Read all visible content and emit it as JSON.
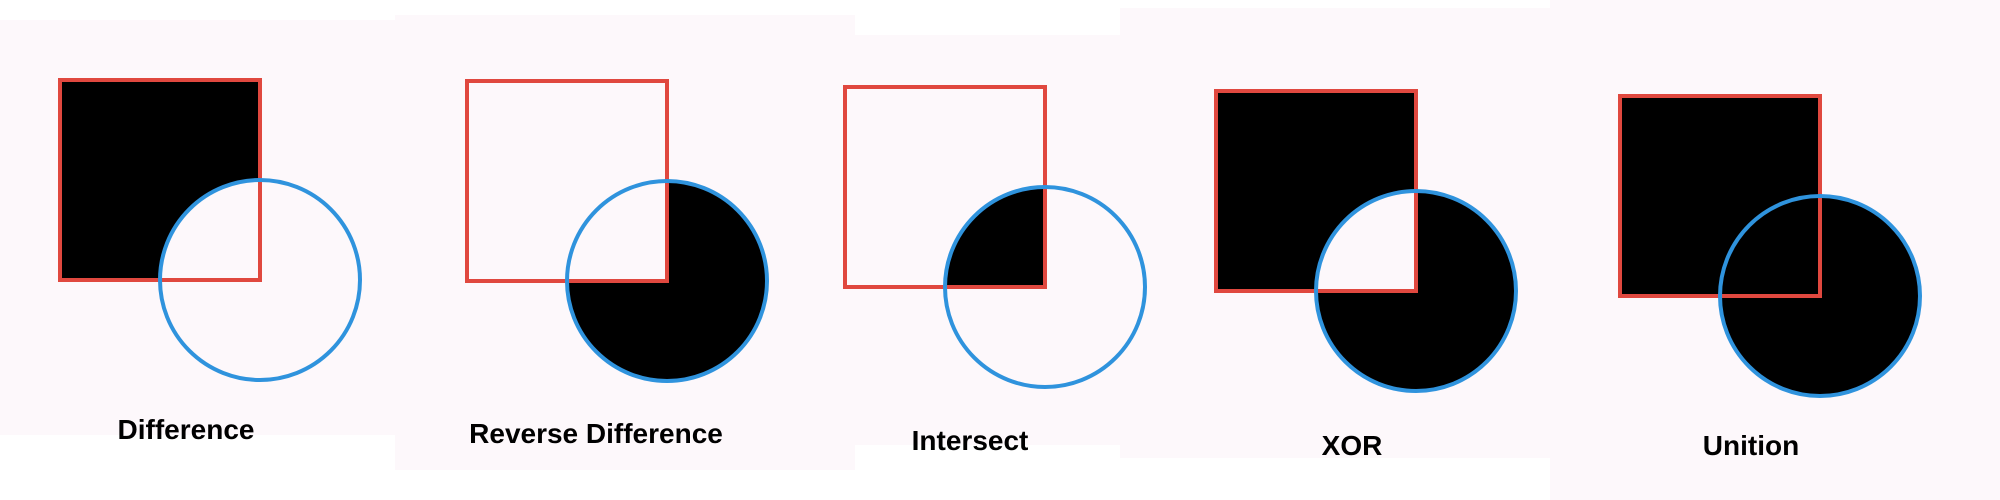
{
  "colors": {
    "square_stroke": "#e0483f",
    "circle_stroke": "#2f93dd",
    "fill": "#000000",
    "background": "#fdf8fb"
  },
  "diagram": {
    "panels": [
      {
        "operation": "difference",
        "label": "Difference"
      },
      {
        "operation": "reverse-difference",
        "label": "Reverse Difference"
      },
      {
        "operation": "intersect",
        "label": "Intersect"
      },
      {
        "operation": "xor",
        "label": "XOR"
      },
      {
        "operation": "union",
        "label": "Unition"
      }
    ]
  }
}
